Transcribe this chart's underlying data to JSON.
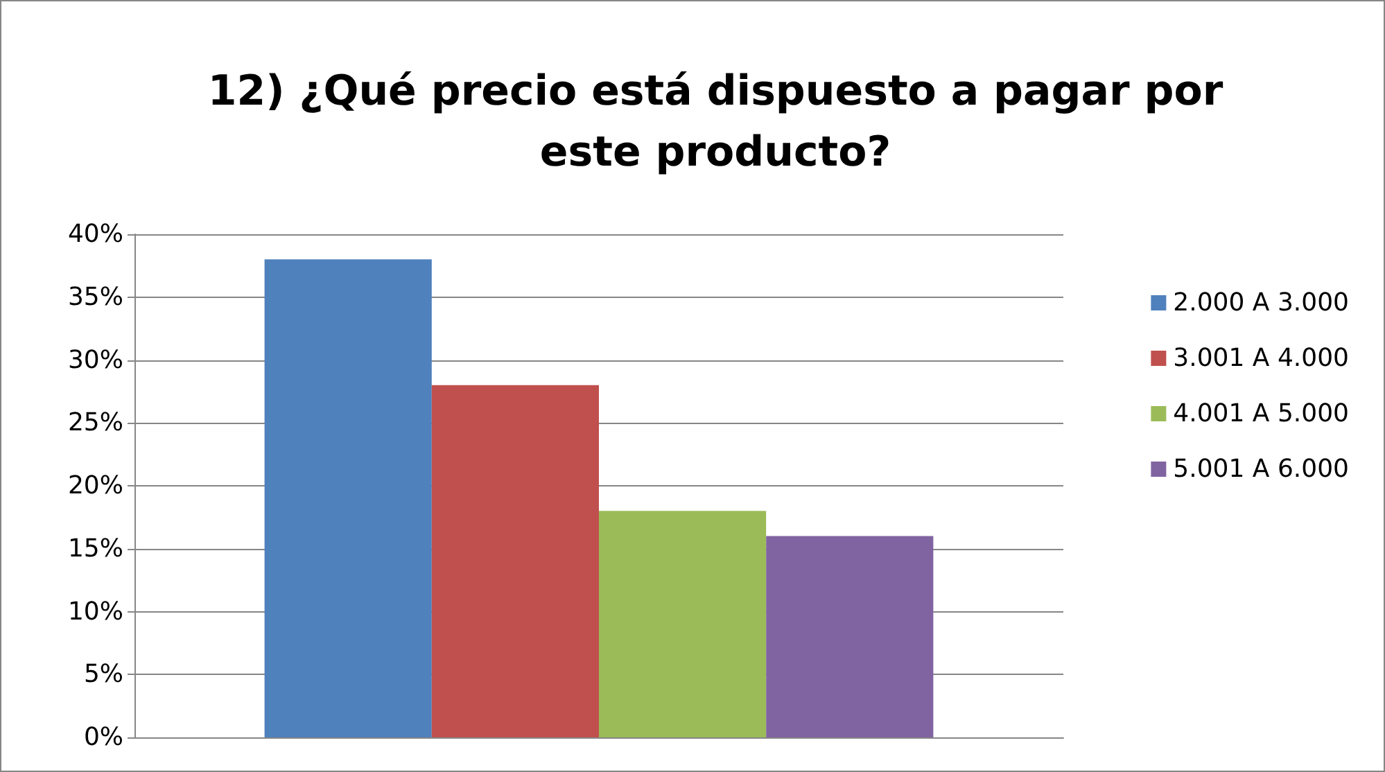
{
  "chart_data": {
    "type": "bar",
    "title": "12) ¿Qué precio está dispuesto a pagar por\neste producto?",
    "categories": [
      null
    ],
    "series": [
      {
        "name": "2.000 A 3.000",
        "color": "#4f81bd",
        "values": [
          38
        ]
      },
      {
        "name": "3.001 A 4.000",
        "color": "#c0504d",
        "values": [
          28
        ]
      },
      {
        "name": "4.001 A 5.000",
        "color": "#9bbb59",
        "values": [
          18
        ]
      },
      {
        "name": "5.001 A 6.000",
        "color": "#8064a2",
        "values": [
          16
        ]
      }
    ],
    "ylim": [
      0,
      40
    ],
    "yticks": [
      {
        "value": 0,
        "label": "0%"
      },
      {
        "value": 5,
        "label": "5%"
      },
      {
        "value": 10,
        "label": "10%"
      },
      {
        "value": 15,
        "label": "15%"
      },
      {
        "value": 20,
        "label": "20%"
      },
      {
        "value": 25,
        "label": "25%"
      },
      {
        "value": 30,
        "label": "30%"
      },
      {
        "value": 35,
        "label": "35%"
      },
      {
        "value": 40,
        "label": "40%"
      }
    ],
    "grid": "y",
    "legend": "right"
  }
}
